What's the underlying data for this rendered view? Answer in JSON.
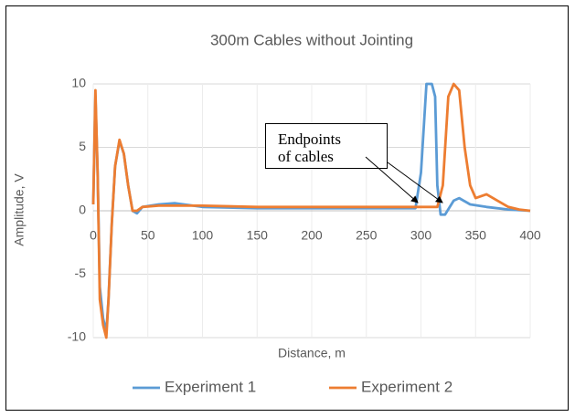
{
  "chart_data": {
    "type": "line",
    "title": "300m Cables without Jointing",
    "xlabel": "Distance, m",
    "ylabel": "Amplitude, V",
    "xlim": [
      0,
      400
    ],
    "xticks": [
      0,
      50,
      100,
      150,
      200,
      250,
      300,
      350,
      400
    ],
    "ylim": [
      -10,
      10
    ],
    "yticks": [
      -10,
      -5,
      0,
      5,
      10
    ],
    "grid": true,
    "legend": "bottom",
    "annotation": [
      "Endpoints",
      "of cables"
    ],
    "series": [
      {
        "name": "Experiment 1",
        "color": "#5b9bd5",
        "x": [
          0,
          2,
          4,
          6,
          9,
          12,
          14,
          17,
          20,
          24,
          28,
          32,
          36,
          40,
          45,
          60,
          75,
          100,
          150,
          200,
          250,
          295,
          300,
          305,
          310,
          313,
          315,
          318,
          322,
          330,
          335,
          345,
          360,
          380,
          400
        ],
        "values": [
          0.5,
          9,
          3,
          -6,
          -8.5,
          -9.5,
          -7,
          -1,
          3.5,
          5.5,
          4.5,
          2,
          0,
          -0.2,
          0.3,
          0.5,
          0.6,
          0.3,
          0.2,
          0.2,
          0.2,
          0.2,
          3,
          10,
          10,
          9,
          2,
          -0.3,
          -0.3,
          0.8,
          1,
          0.5,
          0.3,
          0.1,
          0
        ]
      },
      {
        "name": "Experiment 2",
        "color": "#ed7d31",
        "x": [
          0,
          2,
          4,
          6,
          9,
          12,
          14,
          17,
          20,
          24,
          28,
          32,
          36,
          40,
          45,
          60,
          100,
          150,
          200,
          250,
          300,
          315,
          320,
          325,
          330,
          335,
          340,
          345,
          350,
          360,
          370,
          380,
          390,
          400
        ],
        "values": [
          0.5,
          9.5,
          3,
          -7,
          -9,
          -10,
          -7,
          -1,
          3.5,
          5.6,
          4.5,
          2,
          0,
          0,
          0.3,
          0.4,
          0.4,
          0.3,
          0.3,
          0.3,
          0.3,
          0.3,
          2,
          9,
          10,
          9.5,
          5,
          2,
          1,
          1.3,
          0.8,
          0.3,
          0.1,
          0
        ]
      }
    ]
  }
}
